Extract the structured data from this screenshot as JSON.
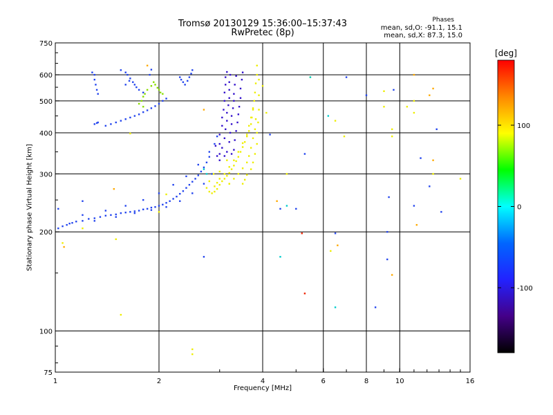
{
  "chart_data": {
    "type": "scatter",
    "title": "Tromsø 20130129 15:36:00–15:37:43",
    "subtitle": "RwPretec (8p)",
    "stats": {
      "heading": "Phases",
      "line1": "mean, sd,O: -91.1, 15.1",
      "line2": "mean, sd,X:  87.3, 15.0"
    },
    "xlabel": "Frequency [MHz]",
    "ylabel": "Stationary phase Virtual Height [km]",
    "x_scale": "log",
    "y_scale": "log",
    "xlim": [
      1,
      16
    ],
    "ylim": [
      75,
      750
    ],
    "x_ticks": [
      1,
      2,
      4,
      6,
      8,
      10,
      16
    ],
    "x_tick_labels": [
      "1",
      "2",
      "4",
      "6",
      "8",
      "10",
      "16"
    ],
    "x_gridlines": [
      2,
      4,
      6,
      8,
      10
    ],
    "y_ticks": [
      75,
      100,
      200,
      300,
      400,
      500,
      600,
      750
    ],
    "y_tick_labels": [
      "75",
      "100",
      "200",
      "300",
      "400",
      "500",
      "600",
      "750"
    ],
    "y_gridlines": [
      100,
      200,
      300,
      400,
      500,
      600
    ],
    "grid": true,
    "colorbar": {
      "label": "[deg]",
      "range": [
        -180,
        180
      ],
      "ticks": [
        100,
        0,
        -100
      ],
      "tick_labels": [
        "100",
        "0",
        "-100"
      ],
      "colors": [
        "#ff0000",
        "#ff8800",
        "#ffff00",
        "#00ff00",
        "#00ffff",
        "#0066ff",
        "#2222ff",
        "#440088",
        "#000000"
      ]
    },
    "series": [
      {
        "phase": -95,
        "color": "#2244ee",
        "points": [
          [
            1.02,
            205
          ],
          [
            1.05,
            208
          ],
          [
            1.08,
            210
          ],
          [
            1.12,
            213
          ],
          [
            1.15,
            215
          ],
          [
            1.2,
            216
          ],
          [
            1.25,
            219
          ],
          [
            1.3,
            220
          ],
          [
            1.35,
            222
          ],
          [
            1.4,
            224
          ],
          [
            1.45,
            225
          ],
          [
            1.5,
            226
          ],
          [
            1.55,
            228
          ],
          [
            1.6,
            229
          ],
          [
            1.65,
            230
          ],
          [
            1.7,
            231
          ],
          [
            1.75,
            232
          ],
          [
            1.8,
            234
          ],
          [
            1.85,
            235
          ],
          [
            1.9,
            237
          ],
          [
            1.95,
            238
          ],
          [
            2.0,
            240
          ],
          [
            2.05,
            242
          ],
          [
            2.1,
            245
          ],
          [
            2.15,
            248
          ],
          [
            2.2,
            252
          ],
          [
            2.25,
            256
          ],
          [
            2.3,
            261
          ],
          [
            2.35,
            266
          ],
          [
            2.4,
            272
          ],
          [
            2.45,
            278
          ],
          [
            2.5,
            284
          ],
          [
            2.55,
            290
          ],
          [
            2.6,
            297
          ],
          [
            2.65,
            305
          ],
          [
            2.7,
            314
          ],
          [
            2.75,
            325
          ],
          [
            2.8,
            338
          ],
          [
            1.1,
            212
          ],
          [
            1.3,
            216
          ],
          [
            1.5,
            222
          ],
          [
            1.7,
            228
          ],
          [
            1.9,
            233
          ],
          [
            2.1,
            238
          ],
          [
            2.3,
            248
          ],
          [
            2.5,
            262
          ],
          [
            2.7,
            280
          ],
          [
            2.85,
            300
          ],
          [
            1.2,
            225
          ],
          [
            1.4,
            232
          ],
          [
            1.6,
            240
          ],
          [
            1.8,
            250
          ],
          [
            2.0,
            262
          ],
          [
            2.2,
            278
          ],
          [
            2.4,
            295
          ],
          [
            2.6,
            320
          ],
          [
            2.8,
            350
          ],
          [
            2.9,
            370
          ],
          [
            2.95,
            390
          ],
          [
            1.4,
            420
          ],
          [
            1.45,
            425
          ],
          [
            1.5,
            430
          ],
          [
            1.55,
            435
          ],
          [
            1.6,
            440
          ],
          [
            1.65,
            445
          ],
          [
            1.7,
            450
          ],
          [
            1.75,
            455
          ],
          [
            1.8,
            462
          ],
          [
            1.85,
            468
          ],
          [
            1.9,
            475
          ],
          [
            1.95,
            482
          ],
          [
            2.0,
            490
          ],
          [
            2.05,
            500
          ],
          [
            2.1,
            508
          ],
          [
            1.3,
            425
          ],
          [
            1.32,
            428
          ],
          [
            1.33,
            430
          ],
          [
            1.28,
            610
          ],
          [
            1.3,
            600
          ],
          [
            1.3,
            580
          ],
          [
            1.31,
            560
          ],
          [
            1.32,
            540
          ],
          [
            1.33,
            525
          ],
          [
            1.55,
            620
          ],
          [
            1.6,
            610
          ],
          [
            1.62,
            600
          ],
          [
            1.65,
            585
          ],
          [
            1.68,
            570
          ],
          [
            1.7,
            560
          ],
          [
            1.72,
            550
          ],
          [
            1.75,
            540
          ],
          [
            1.8,
            530
          ],
          [
            1.6,
            560
          ],
          [
            1.64,
            575
          ],
          [
            2.3,
            590
          ],
          [
            2.32,
            580
          ],
          [
            2.35,
            570
          ],
          [
            2.38,
            560
          ],
          [
            2.42,
            575
          ],
          [
            2.45,
            590
          ],
          [
            2.48,
            605
          ],
          [
            2.5,
            620
          ],
          [
            1.9,
            622
          ],
          [
            1.88,
            600
          ],
          [
            1.2,
            248
          ],
          [
            1.02,
            235
          ],
          [
            2.7,
            168
          ],
          [
            5.0,
            235
          ],
          [
            4.5,
            235
          ],
          [
            4.2,
            395
          ],
          [
            5.3,
            345
          ],
          [
            6.5,
            198
          ],
          [
            8.5,
            118
          ],
          [
            9.2,
            165
          ],
          [
            9.2,
            200
          ],
          [
            9.3,
            255
          ],
          [
            11.5,
            335
          ],
          [
            12.2,
            275
          ],
          [
            13.2,
            230
          ],
          [
            11.0,
            240
          ],
          [
            12.8,
            410
          ],
          [
            7.0,
            590
          ],
          [
            8.0,
            520
          ],
          [
            9.6,
            540
          ]
        ]
      },
      {
        "phase": -115,
        "color": "#3311cc",
        "points": [
          [
            3.0,
            345
          ],
          [
            3.0,
            370
          ],
          [
            3.0,
            395
          ],
          [
            3.05,
            420
          ],
          [
            3.05,
            445
          ],
          [
            3.08,
            470
          ],
          [
            3.1,
            500
          ],
          [
            3.1,
            530
          ],
          [
            3.12,
            560
          ],
          [
            3.12,
            590
          ],
          [
            3.15,
            612
          ],
          [
            3.05,
            360
          ],
          [
            3.1,
            385
          ],
          [
            3.12,
            410
          ],
          [
            3.15,
            435
          ],
          [
            3.15,
            460
          ],
          [
            3.18,
            485
          ],
          [
            3.2,
            510
          ],
          [
            3.2,
            540
          ],
          [
            3.2,
            570
          ],
          [
            3.22,
            600
          ],
          [
            3.15,
            350
          ],
          [
            3.2,
            375
          ],
          [
            3.22,
            400
          ],
          [
            3.25,
            425
          ],
          [
            3.25,
            450
          ],
          [
            3.28,
            475
          ],
          [
            3.3,
            500
          ],
          [
            3.3,
            525
          ],
          [
            3.32,
            560
          ],
          [
            3.35,
            595
          ],
          [
            3.3,
            355
          ],
          [
            3.32,
            380
          ],
          [
            3.35,
            405
          ],
          [
            3.38,
            430
          ],
          [
            3.4,
            455
          ],
          [
            3.42,
            480
          ],
          [
            3.45,
            510
          ],
          [
            3.45,
            545
          ],
          [
            3.48,
            580
          ],
          [
            3.5,
            610
          ],
          [
            2.95,
            340
          ],
          [
            2.92,
            365
          ],
          [
            3.0,
            330
          ],
          [
            3.1,
            340
          ],
          [
            3.25,
            345
          ]
        ]
      },
      {
        "phase": 95,
        "color": "#eeee00",
        "points": [
          [
            2.75,
            272
          ],
          [
            2.8,
            265
          ],
          [
            2.85,
            262
          ],
          [
            2.9,
            265
          ],
          [
            2.95,
            270
          ],
          [
            3.0,
            278
          ],
          [
            3.05,
            285
          ],
          [
            3.1,
            290
          ],
          [
            3.15,
            296
          ],
          [
            3.2,
            302
          ],
          [
            3.25,
            310
          ],
          [
            3.3,
            318
          ],
          [
            3.35,
            328
          ],
          [
            3.4,
            338
          ],
          [
            3.45,
            350
          ],
          [
            3.5,
            362
          ],
          [
            3.55,
            375
          ],
          [
            3.6,
            390
          ],
          [
            3.65,
            405
          ],
          [
            3.7,
            425
          ],
          [
            3.72,
            445
          ],
          [
            3.75,
            470
          ],
          [
            3.78,
            500
          ],
          [
            3.8,
            530
          ],
          [
            3.82,
            565
          ],
          [
            3.85,
            600
          ],
          [
            3.85,
            640
          ],
          [
            2.9,
            275
          ],
          [
            3.0,
            290
          ],
          [
            3.1,
            300
          ],
          [
            3.2,
            315
          ],
          [
            3.3,
            330
          ],
          [
            3.4,
            350
          ],
          [
            3.5,
            372
          ],
          [
            3.6,
            395
          ],
          [
            3.65,
            420
          ],
          [
            3.7,
            445
          ],
          [
            3.75,
            475
          ],
          [
            3.2,
            280
          ],
          [
            3.3,
            290
          ],
          [
            3.4,
            300
          ],
          [
            3.5,
            312
          ],
          [
            3.6,
            325
          ],
          [
            3.65,
            340
          ],
          [
            3.7,
            360
          ],
          [
            3.75,
            385
          ],
          [
            3.8,
            410
          ],
          [
            3.82,
            440
          ],
          [
            3.5,
            280
          ],
          [
            3.55,
            288
          ],
          [
            3.6,
            298
          ],
          [
            3.7,
            310
          ],
          [
            3.75,
            325
          ],
          [
            3.8,
            345
          ],
          [
            3.85,
            370
          ],
          [
            3.85,
            400
          ],
          [
            3.88,
            430
          ],
          [
            3.9,
            470
          ],
          [
            3.9,
            520
          ],
          [
            3.9,
            580
          ],
          [
            2.8,
            285
          ],
          [
            2.88,
            300
          ],
          [
            3.0,
            305
          ],
          [
            3.15,
            330
          ],
          [
            1.2,
            205
          ],
          [
            1.05,
            185
          ],
          [
            1.5,
            190
          ],
          [
            2.5,
            85
          ],
          [
            2.5,
            88
          ],
          [
            1.55,
            112
          ],
          [
            4.1,
            460
          ],
          [
            4.0,
            555
          ],
          [
            6.5,
            435
          ],
          [
            6.9,
            390
          ],
          [
            6.3,
            175
          ],
          [
            4.7,
            300
          ],
          [
            5.5,
            590
          ],
          [
            9.0,
            535
          ],
          [
            9.0,
            480
          ],
          [
            9.5,
            410
          ],
          [
            9.5,
            390
          ],
          [
            10.5,
            480
          ],
          [
            11.0,
            460
          ],
          [
            11.0,
            500
          ],
          [
            12.5,
            300
          ],
          [
            15.0,
            290
          ],
          [
            1.65,
            398
          ],
          [
            2.0,
            230
          ],
          [
            2.1,
            260
          ],
          [
            3.2,
            280
          ],
          [
            2.95,
            282
          ]
        ]
      },
      {
        "phase": 70,
        "color": "#ffaa00",
        "points": [
          [
            1.06,
            180
          ],
          [
            1.48,
            270
          ],
          [
            1.85,
            640
          ],
          [
            2.7,
            470
          ],
          [
            4.4,
            248
          ],
          [
            6.6,
            182
          ],
          [
            9.5,
            148
          ],
          [
            11.2,
            210
          ],
          [
            12.5,
            330
          ],
          [
            12.5,
            545
          ],
          [
            11.0,
            600
          ],
          [
            12.2,
            520
          ]
        ]
      },
      {
        "phase": 20,
        "color": "#88dd00",
        "points": [
          [
            1.78,
            500
          ],
          [
            1.8,
            515
          ],
          [
            1.82,
            525
          ],
          [
            1.85,
            540
          ],
          [
            1.9,
            555
          ],
          [
            1.93,
            570
          ],
          [
            1.95,
            560
          ],
          [
            1.98,
            548
          ],
          [
            2.0,
            540
          ],
          [
            2.02,
            530
          ],
          [
            2.05,
            525
          ],
          [
            1.75,
            490
          ],
          [
            1.8,
            480
          ]
        ]
      },
      {
        "phase": -20,
        "color": "#00cccc",
        "points": [
          [
            4.5,
            168
          ],
          [
            5.5,
            590
          ],
          [
            6.5,
            118
          ],
          [
            4.7,
            240
          ],
          [
            6.2,
            450
          ],
          [
            2.75,
            300
          ],
          [
            2.7,
            310
          ]
        ]
      },
      {
        "phase": 175,
        "color": "#ee2200",
        "points": [
          [
            5.2,
            198
          ],
          [
            5.3,
            130
          ]
        ]
      }
    ]
  }
}
